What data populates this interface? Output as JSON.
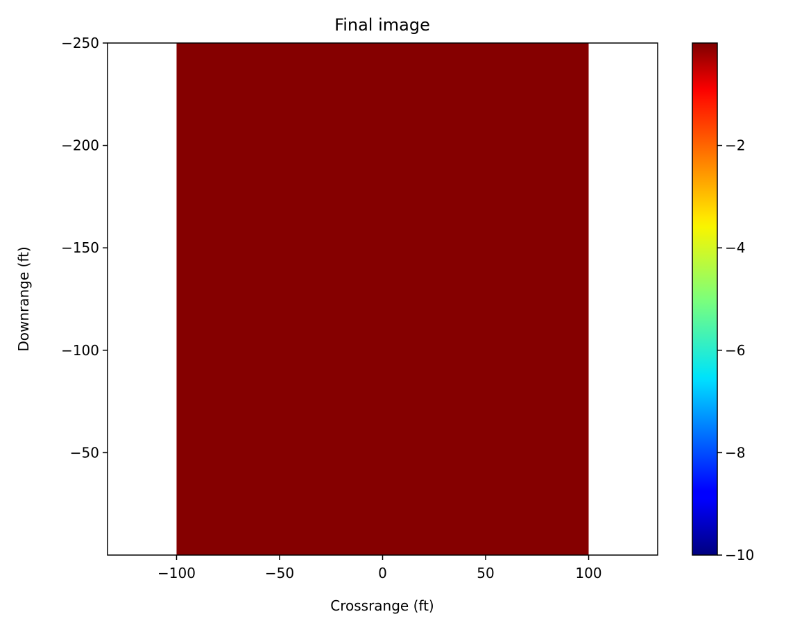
{
  "chart_data": {
    "type": "heatmap",
    "title": "Final image",
    "xlabel": "Crossrange (ft)",
    "ylabel": "Downrange (ft)",
    "xlim": [
      -133.5,
      133.5
    ],
    "ylim": [
      -250,
      0
    ],
    "y_inverted": true,
    "image_extent": {
      "x": [
        -100,
        100
      ],
      "y": [
        -250,
        0
      ]
    },
    "image_fill": "#850000",
    "x_ticks": [
      {
        "value": -100,
        "label": "−100"
      },
      {
        "value": -50,
        "label": "−50"
      },
      {
        "value": 0,
        "label": "0"
      },
      {
        "value": 50,
        "label": "50"
      },
      {
        "value": 100,
        "label": "100"
      }
    ],
    "y_ticks": [
      {
        "value": -250,
        "label": "−250"
      },
      {
        "value": -200,
        "label": "−200"
      },
      {
        "value": -150,
        "label": "−150"
      },
      {
        "value": -100,
        "label": "−100"
      },
      {
        "value": -50,
        "label": "−50"
      }
    ],
    "colorbar": {
      "colormap": "jet",
      "range": [
        -10,
        0
      ],
      "ticks": [
        {
          "value": -2,
          "label": "−2"
        },
        {
          "value": -4,
          "label": "−4"
        },
        {
          "value": -6,
          "label": "−6"
        },
        {
          "value": -8,
          "label": "−8"
        },
        {
          "value": -10,
          "label": "−10"
        }
      ]
    },
    "grid": false
  }
}
